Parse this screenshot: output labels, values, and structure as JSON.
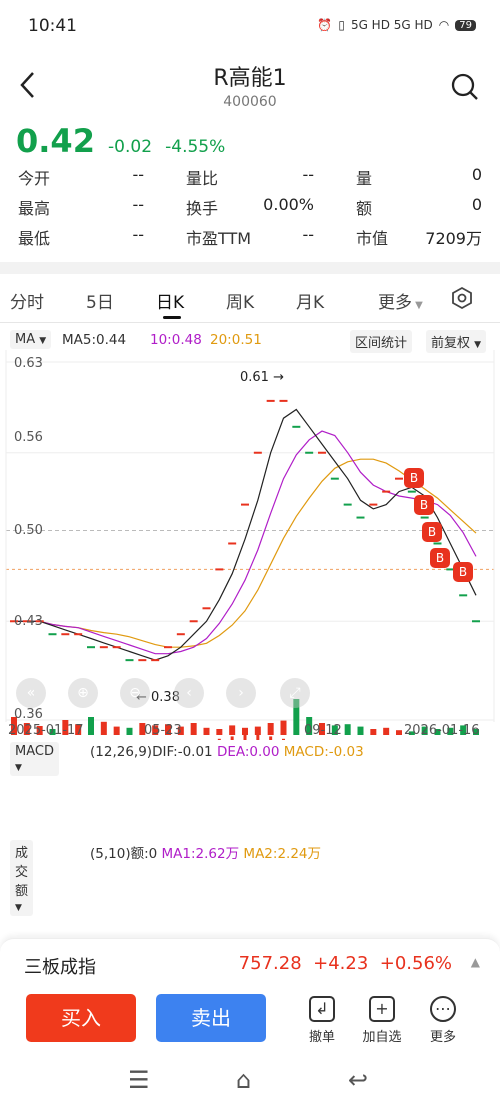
{
  "status": {
    "time": "10:41",
    "battery": "79",
    "signal": "5G HD 5G HD"
  },
  "header": {
    "title": "R高能1",
    "code": "400060"
  },
  "quote": {
    "price": "0.42",
    "change": "-0.02",
    "change_pct": "-4.55%"
  },
  "stats": [
    [
      {
        "label": "今开",
        "value": "--"
      },
      {
        "label": "量比",
        "value": "--"
      },
      {
        "label": "量",
        "value": "0"
      }
    ],
    [
      {
        "label": "最高",
        "value": "--"
      },
      {
        "label": "换手",
        "value": "0.00%"
      },
      {
        "label": "额",
        "value": "0"
      }
    ],
    [
      {
        "label": "最低",
        "value": "--"
      },
      {
        "label": "市盈TTM",
        "value": "--"
      },
      {
        "label": "市值",
        "value": "7209万"
      }
    ]
  ],
  "tabs": [
    "分时",
    "5日",
    "日K",
    "周K",
    "月K",
    "更多"
  ],
  "active_tab": "日K",
  "ma": {
    "selector": "MA",
    "ma5": "MA5:0.44",
    "ma10": "10:0.48",
    "ma20": "20:0.51",
    "range_stats": "区间统计",
    "adjust": "前复权"
  },
  "kline": {
    "y_labels": [
      "0.63",
      "0.56",
      "0.50",
      "0.43",
      "0.36"
    ],
    "x_labels": [
      "2025-01-17",
      "05-23",
      "09-12",
      "2026-01-16"
    ],
    "high_marker": "0.61",
    "low_marker": "0.38",
    "buy_badge": "B"
  },
  "macd": {
    "selector": "MACD",
    "params": "(12,26,9)",
    "dif": "DIF:-0.01",
    "dea": "DEA:0.00",
    "macd": "MACD:-0.03"
  },
  "volume": {
    "selector": "成交额",
    "params": "(5,10)额:0",
    "ma1": "MA1:2.62万",
    "ma2": "MA2:2.24万"
  },
  "index": {
    "name": "三板成指",
    "value": "757.28",
    "change": "+4.23",
    "change_pct": "+0.56%"
  },
  "actions": {
    "buy": "买入",
    "sell": "卖出",
    "cancel": "撤单",
    "add_watch": "加自选",
    "more": "更多"
  },
  "colors": {
    "up": "#e8321e",
    "down": "#12a04c",
    "ma5": "#222222",
    "ma10": "#b01ec8",
    "ma20": "#e09a10"
  },
  "chart_data": {
    "type": "candlestick",
    "ma_lines": [
      "MA5",
      "MA10",
      "MA20"
    ],
    "y_ticks": [
      "0.63",
      "0.56",
      "0.50",
      "0.43",
      "0.36"
    ],
    "x_ticks": [
      "2025-01-17",
      "05-23",
      "09-12",
      "2026-01-16"
    ],
    "high": 0.61,
    "low": 0.38,
    "last": 0.42
  }
}
